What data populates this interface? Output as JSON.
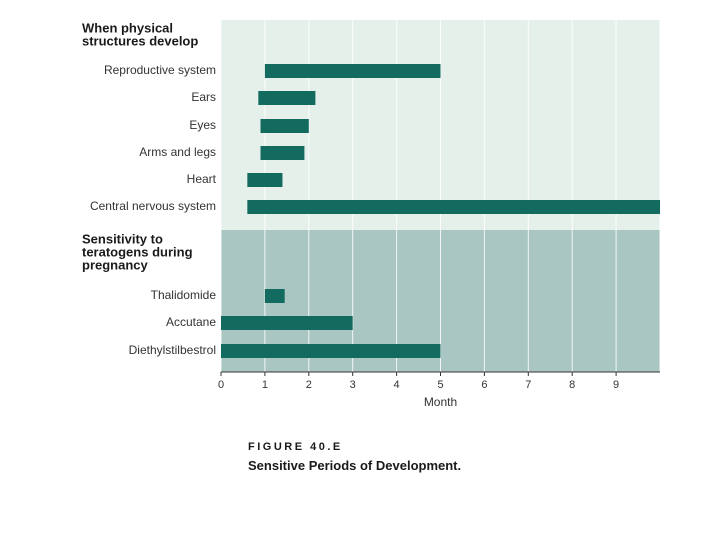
{
  "chart_data": {
    "type": "bar",
    "orientation": "horizontal-range",
    "xlabel": "Month",
    "xlim": [
      0,
      10
    ],
    "xticks": [
      "0",
      "1",
      "2",
      "3",
      "4",
      "5",
      "6",
      "7",
      "8",
      "9"
    ],
    "grid": true,
    "sections": [
      {
        "title": "When physical structures develop",
        "title_lines": [
          "When physical",
          "structures develop"
        ],
        "color": "#e6f0eb",
        "rows": [
          {
            "label": "Reproductive system",
            "start": 1.0,
            "end": 5.0
          },
          {
            "label": "Ears",
            "start": 0.85,
            "end": 2.15
          },
          {
            "label": "Eyes",
            "start": 0.9,
            "end": 2.0
          },
          {
            "label": "Arms and legs",
            "start": 0.9,
            "end": 1.9
          },
          {
            "label": "Heart",
            "start": 0.6,
            "end": 1.4
          },
          {
            "label": "Central nervous system",
            "start": 0.6,
            "end": 10.0
          }
        ]
      },
      {
        "title": "Sensitivity to teratogens during pregnancy",
        "title_lines": [
          "Sensitivity to",
          "teratogens during",
          "pregnancy"
        ],
        "color": "#a9c6c3",
        "rows": [
          {
            "label": "Thalidomide",
            "start": 1.0,
            "end": 1.45
          },
          {
            "label": "Accutane",
            "start": 0.0,
            "end": 3.0
          },
          {
            "label": "Diethylstilbestrol",
            "start": 0.0,
            "end": 5.0
          }
        ]
      }
    ],
    "bar_color": "#136a5e"
  },
  "figure": {
    "label": "FIGURE 40.E",
    "caption": "Sensitive Periods of Development."
  }
}
